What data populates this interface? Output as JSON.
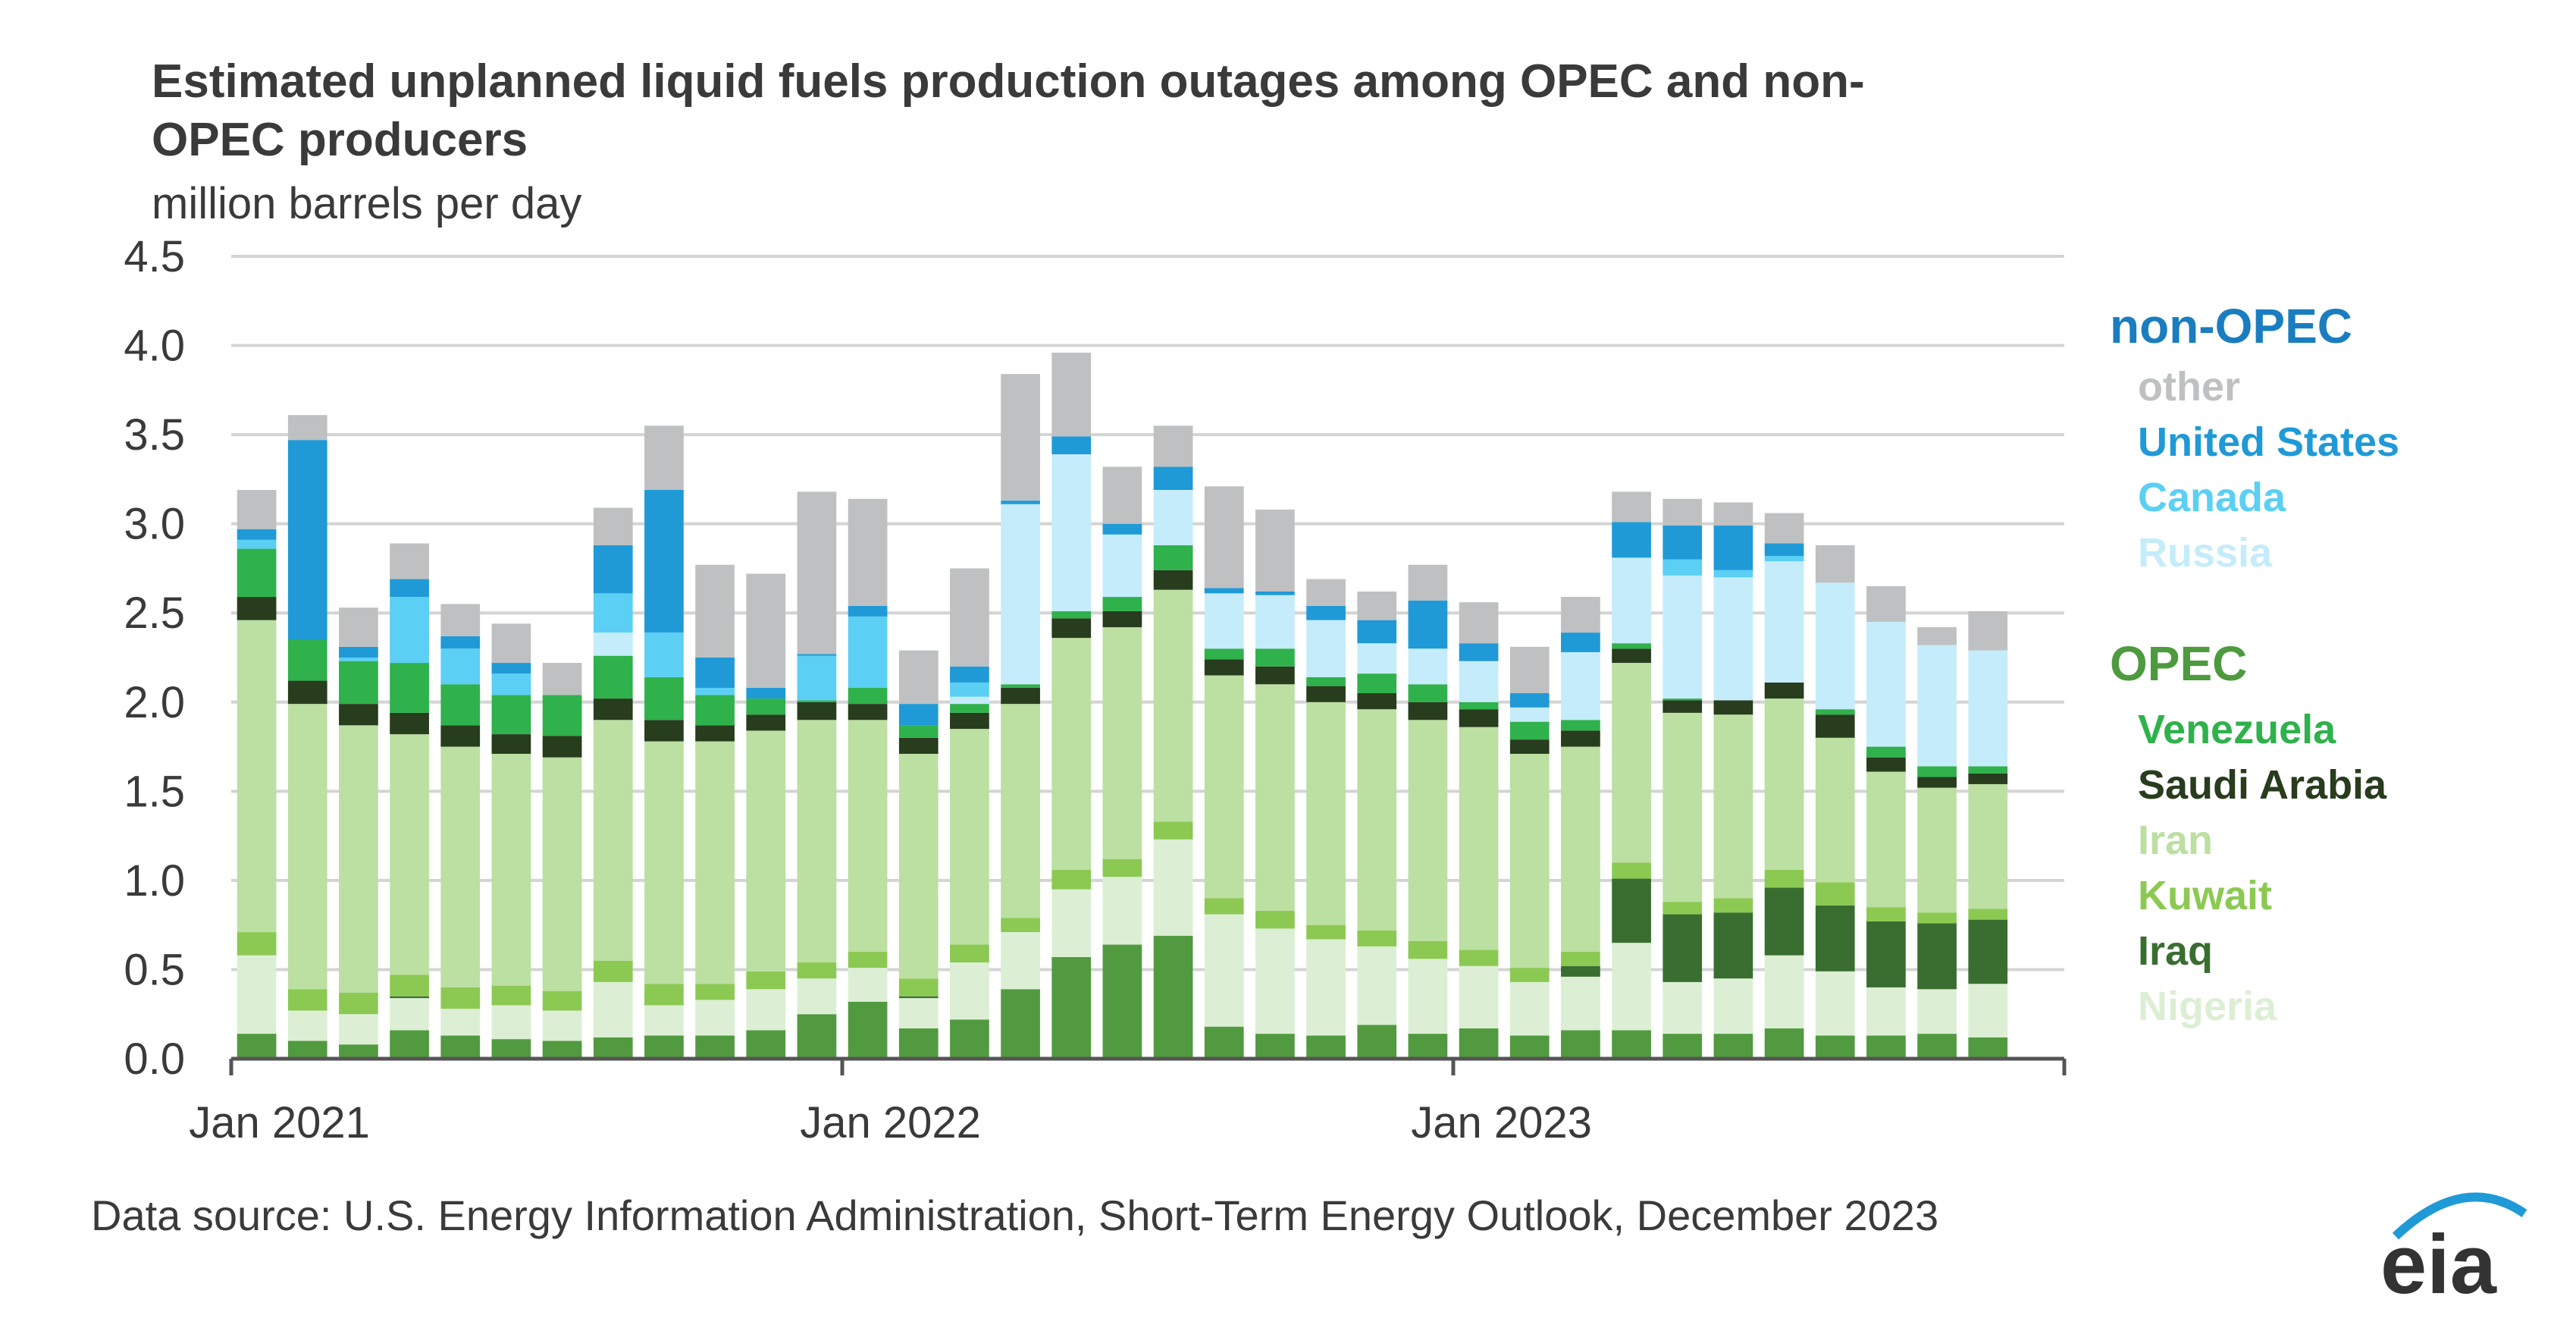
{
  "title_line1": "Estimated unplanned liquid fuels production outages among OPEC and non-",
  "title_line2": "OPEC producers",
  "source": "Data source: U.S. Energy Information Administration, Short-Term Energy Outlook, December 2023",
  "logo_text": "eia",
  "legend": {
    "nonopec_heading": "non-OPEC",
    "opec_heading": "OPEC",
    "nonopec_color": "#1a7dbf",
    "opec_color": "#4e9a3e"
  },
  "chart_data": {
    "type": "bar",
    "stacked": true,
    "title": "Estimated unplanned liquid fuels production outages among OPEC and non-OPEC producers",
    "ylabel": "million barrels per day",
    "xlabel": "",
    "ylim": [
      0,
      4.5
    ],
    "yticks": [
      "0.0",
      "0.5",
      "1.0",
      "1.5",
      "2.0",
      "2.5",
      "3.0",
      "3.5",
      "4.0",
      "4.5"
    ],
    "xticks": [
      {
        "label": "Jan 2021",
        "index": 0
      },
      {
        "label": "Jan 2022",
        "index": 12
      },
      {
        "label": "Jan 2023",
        "index": 24
      }
    ],
    "grid": true,
    "legend_position": "right",
    "categories": [
      "2021-01",
      "2021-02",
      "2021-03",
      "2021-04",
      "2021-05",
      "2021-06",
      "2021-07",
      "2021-08",
      "2021-09",
      "2021-10",
      "2021-11",
      "2021-12",
      "2022-01",
      "2022-02",
      "2022-03",
      "2022-04",
      "2022-05",
      "2022-06",
      "2022-07",
      "2022-08",
      "2022-09",
      "2022-10",
      "2022-11",
      "2022-12",
      "2023-01",
      "2023-02",
      "2023-03",
      "2023-04",
      "2023-05",
      "2023-06",
      "2023-07",
      "2023-08",
      "2023-09",
      "2023-10",
      "2023-11"
    ],
    "series": [
      {
        "name": "",
        "group": "OPEC",
        "color": "#529a40",
        "values": [
          0.14,
          0.1,
          0.08,
          0.16,
          0.13,
          0.11,
          0.1,
          0.12,
          0.13,
          0.13,
          0.16,
          0.25,
          0.32,
          0.17,
          0.22,
          0.39,
          0.57,
          0.64,
          0.69,
          0.18,
          0.14,
          0.13,
          0.19,
          0.14,
          0.17,
          0.13,
          0.16,
          0.16,
          0.14,
          0.14,
          0.17,
          0.13,
          0.13,
          0.14,
          0.12
        ]
      },
      {
        "name": "Nigeria",
        "group": "OPEC",
        "color": "#dcefd4",
        "values": [
          0.44,
          0.17,
          0.17,
          0.18,
          0.15,
          0.19,
          0.17,
          0.31,
          0.17,
          0.2,
          0.23,
          0.2,
          0.19,
          0.17,
          0.32,
          0.32,
          0.38,
          0.38,
          0.54,
          0.63,
          0.59,
          0.54,
          0.44,
          0.42,
          0.35,
          0.3,
          0.3,
          0.49,
          0.29,
          0.31,
          0.41,
          0.36,
          0.27,
          0.25,
          0.3
        ]
      },
      {
        "name": "Iraq",
        "group": "OPEC",
        "color": "#3a6e30",
        "values": [
          0,
          0,
          0,
          0.01,
          0,
          0,
          0,
          0,
          0,
          0,
          0,
          0,
          0,
          0.01,
          0,
          0,
          0,
          0,
          0,
          0,
          0,
          0,
          0,
          0,
          0,
          0,
          0.06,
          0.36,
          0.38,
          0.37,
          0.38,
          0.37,
          0.37,
          0.37,
          0.36
        ]
      },
      {
        "name": "Kuwait",
        "group": "OPEC",
        "color": "#8cc953",
        "values": [
          0.13,
          0.12,
          0.12,
          0.12,
          0.12,
          0.11,
          0.11,
          0.12,
          0.12,
          0.09,
          0.1,
          0.09,
          0.09,
          0.1,
          0.1,
          0.08,
          0.11,
          0.1,
          0.1,
          0.09,
          0.1,
          0.08,
          0.09,
          0.1,
          0.09,
          0.08,
          0.08,
          0.09,
          0.07,
          0.08,
          0.1,
          0.13,
          0.08,
          0.06,
          0.06
        ]
      },
      {
        "name": "Iran",
        "group": "OPEC",
        "color": "#bcdfa2",
        "values": [
          1.75,
          1.6,
          1.5,
          1.35,
          1.35,
          1.3,
          1.31,
          1.35,
          1.36,
          1.36,
          1.35,
          1.36,
          1.3,
          1.26,
          1.21,
          1.2,
          1.3,
          1.3,
          1.3,
          1.25,
          1.27,
          1.25,
          1.24,
          1.24,
          1.25,
          1.2,
          1.15,
          1.12,
          1.06,
          1.03,
          0.96,
          0.81,
          0.76,
          0.7,
          0.7
        ]
      },
      {
        "name": "Saudi Arabia",
        "group": "OPEC",
        "color": "#283c1e",
        "values": [
          0.13,
          0.13,
          0.12,
          0.12,
          0.12,
          0.11,
          0.12,
          0.12,
          0.12,
          0.09,
          0.09,
          0.1,
          0.09,
          0.09,
          0.09,
          0.09,
          0.11,
          0.09,
          0.11,
          0.09,
          0.1,
          0.09,
          0.09,
          0.1,
          0.1,
          0.08,
          0.09,
          0.08,
          0.07,
          0.08,
          0.09,
          0.13,
          0.08,
          0.06,
          0.06
        ]
      },
      {
        "name": "Venezuela",
        "group": "OPEC",
        "color": "#2fb14c",
        "values": [
          0.27,
          0.23,
          0.24,
          0.28,
          0.23,
          0.22,
          0.23,
          0.24,
          0.24,
          0.17,
          0.09,
          0.01,
          0.09,
          0.07,
          0.05,
          0.02,
          0.04,
          0.08,
          0.14,
          0.06,
          0.1,
          0.05,
          0.11,
          0.1,
          0.04,
          0.1,
          0.06,
          0.03,
          0.01,
          0,
          0,
          0.03,
          0.06,
          0.06,
          0.04
        ]
      },
      {
        "name": "Russia",
        "group": "non-OPEC",
        "color": "#c5ecfa",
        "values": [
          0,
          0,
          0,
          0,
          0,
          0,
          0,
          0.13,
          0,
          0,
          0,
          0,
          0,
          0,
          0.04,
          1.01,
          0.88,
          0.35,
          0.31,
          0.31,
          0.3,
          0.32,
          0.17,
          0.2,
          0.23,
          0.08,
          0.38,
          0.48,
          0.69,
          0.69,
          0.68,
          0.71,
          0.7,
          0.68,
          0.65
        ]
      },
      {
        "name": "Canada",
        "group": "non-OPEC",
        "color": "#5bcff4",
        "values": [
          0.05,
          0,
          0.02,
          0.37,
          0.2,
          0.12,
          0,
          0.22,
          0.25,
          0.04,
          0,
          0.25,
          0.4,
          0,
          0.08,
          0,
          0,
          0,
          0,
          0,
          0,
          0,
          0,
          0,
          0,
          0,
          0,
          0,
          0.09,
          0.04,
          0.03,
          0,
          0,
          0,
          0
        ]
      },
      {
        "name": "United States",
        "group": "non-OPEC",
        "color": "#1f9ad6",
        "values": [
          0.06,
          1.12,
          0.06,
          0.1,
          0.07,
          0.06,
          0,
          0.27,
          0.8,
          0.17,
          0.06,
          0.01,
          0.06,
          0.12,
          0.09,
          0.02,
          0.1,
          0.06,
          0.13,
          0.03,
          0.02,
          0.08,
          0.13,
          0.27,
          0.1,
          0.08,
          0.11,
          0.2,
          0.19,
          0.25,
          0.07,
          0,
          0,
          0,
          0
        ]
      },
      {
        "name": "other",
        "group": "non-OPEC",
        "color": "#bfc0c2",
        "values": [
          0.22,
          0.14,
          0.22,
          0.2,
          0.18,
          0.22,
          0.18,
          0.21,
          0.36,
          0.52,
          0.64,
          0.91,
          0.6,
          0.3,
          0.55,
          0.71,
          0.47,
          0.32,
          0.23,
          0.57,
          0.46,
          0.15,
          0.16,
          0.2,
          0.23,
          0.26,
          0.2,
          0.17,
          0.15,
          0.13,
          0.17,
          0.21,
          0.2,
          0.1,
          0.22
        ]
      }
    ]
  }
}
